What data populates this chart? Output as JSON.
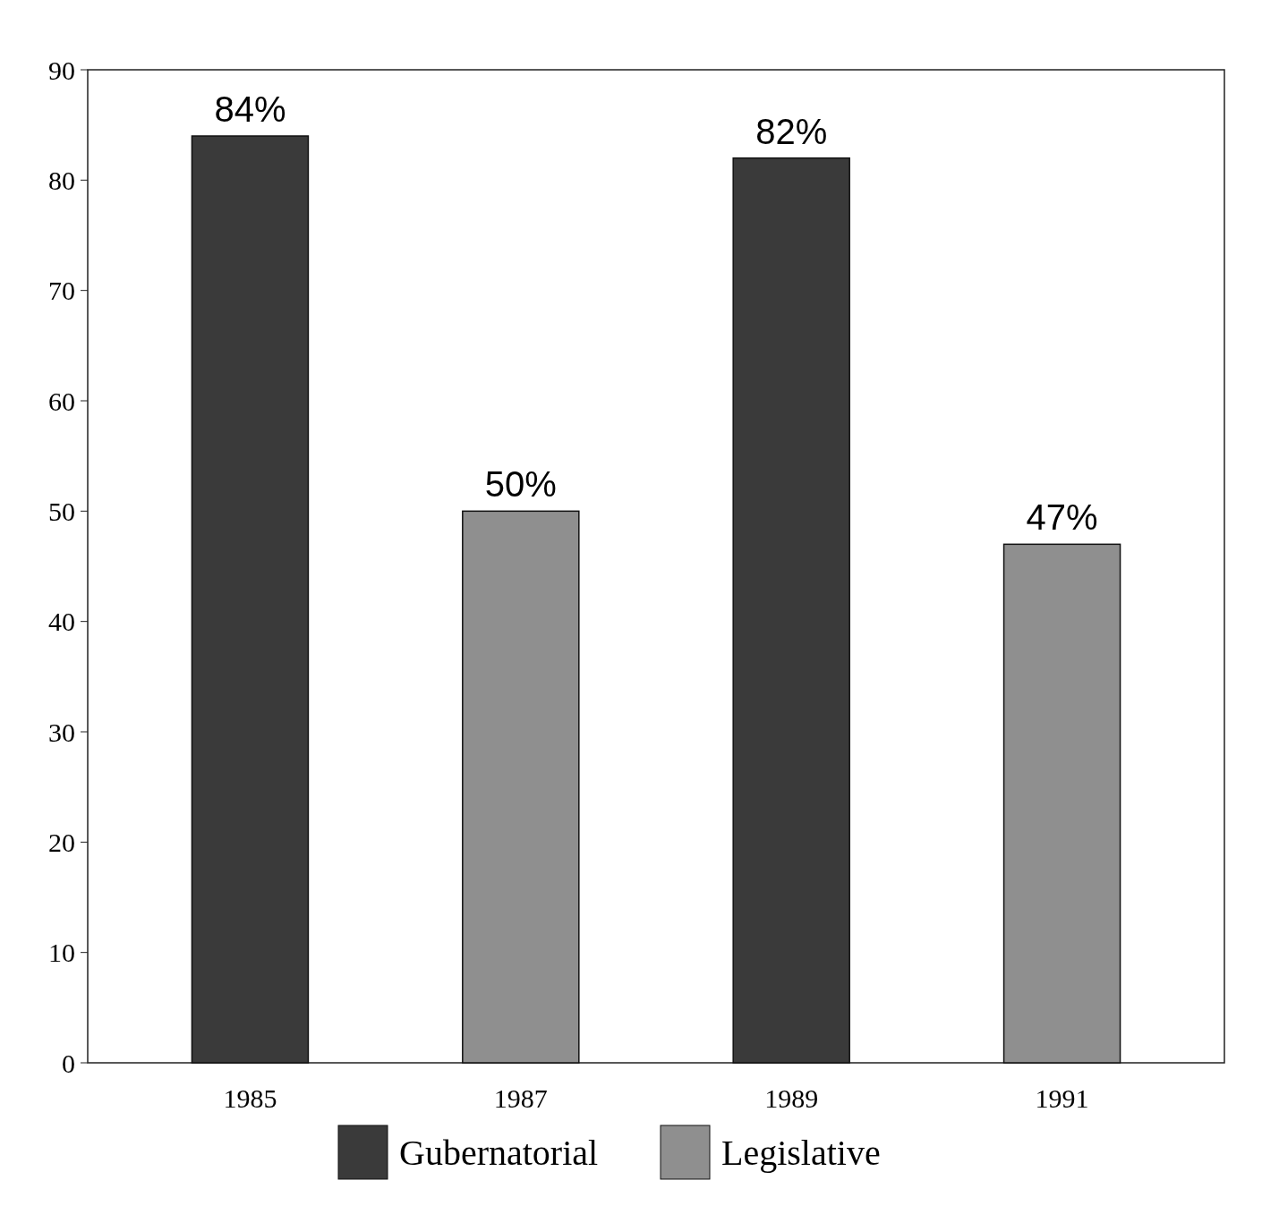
{
  "chart_data": {
    "type": "bar",
    "categories": [
      "1985",
      "1987",
      "1989",
      "1991"
    ],
    "series": [
      {
        "name": "Gubernatorial",
        "color": "#3a3a3a",
        "values": [
          84,
          null,
          82,
          null
        ],
        "value_labels": [
          "84%",
          null,
          "82%",
          null
        ]
      },
      {
        "name": "Legislative",
        "color": "#8f8f8f",
        "values": [
          null,
          50,
          null,
          47
        ],
        "value_labels": [
          null,
          "50%",
          null,
          "47%"
        ]
      }
    ],
    "ylim": [
      0,
      90
    ],
    "yticks": [
      0,
      10,
      20,
      30,
      40,
      50,
      60,
      70,
      80,
      90
    ],
    "grid": false,
    "legend": "bottom"
  }
}
